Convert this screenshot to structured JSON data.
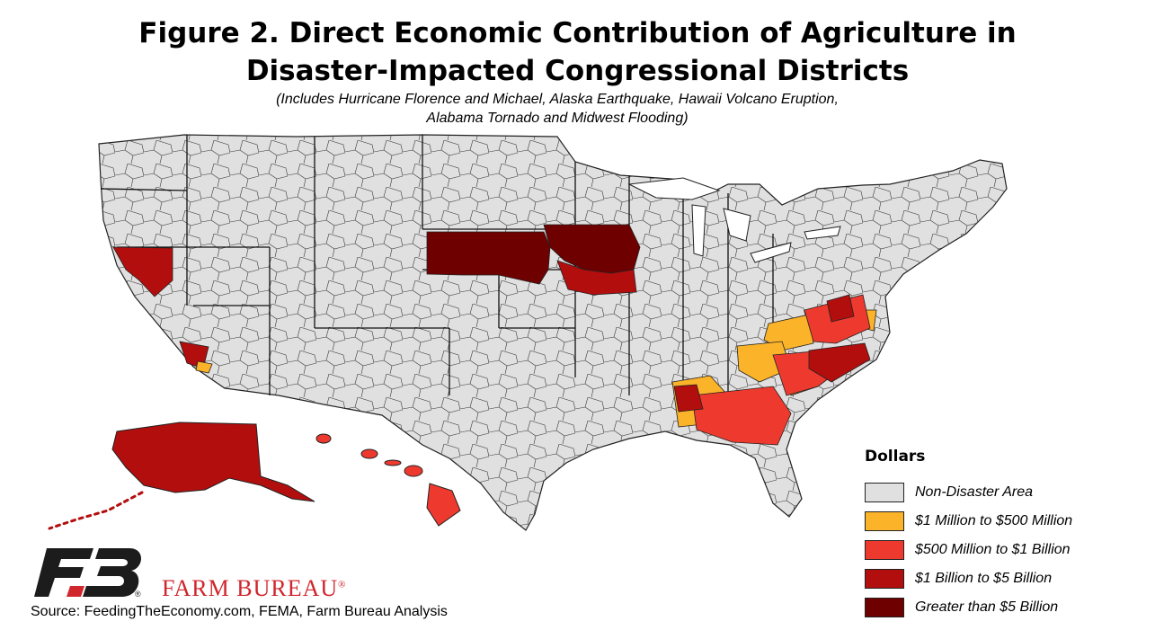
{
  "header": {
    "title_line1": "Figure 2. Direct Economic Contribution of Agriculture in",
    "title_line2": "Disaster-Impacted Congressional Districts",
    "subtitle_line1": "(Includes Hurricane Florence and Michael, Alaska Earthquake, Hawaii Volcano Eruption,",
    "subtitle_line2": "Alabama Tornado and Midwest Flooding)"
  },
  "legend": {
    "title": "Dollars",
    "items": [
      {
        "label": "Non-Disaster Area",
        "color": "#e0e0e0"
      },
      {
        "label": "$1 Million to $500 Million",
        "color": "#fbb42a"
      },
      {
        "label": "$500 Million to $1 Billion",
        "color": "#ee3a2e"
      },
      {
        "label": "$1 Billion to $5 Billion",
        "color": "#b20e0e"
      },
      {
        "label": "Greater than $5 Billion",
        "color": "#6e0000"
      }
    ]
  },
  "branding": {
    "org_name": "FARM BUREAU",
    "registered_mark": "®",
    "logo_color": "#1c1c1c",
    "accent_color": "#d0262d"
  },
  "footer": {
    "source": "Source: FeedingTheEconomy.com, FEMA, Farm Bureau Analysis"
  }
}
